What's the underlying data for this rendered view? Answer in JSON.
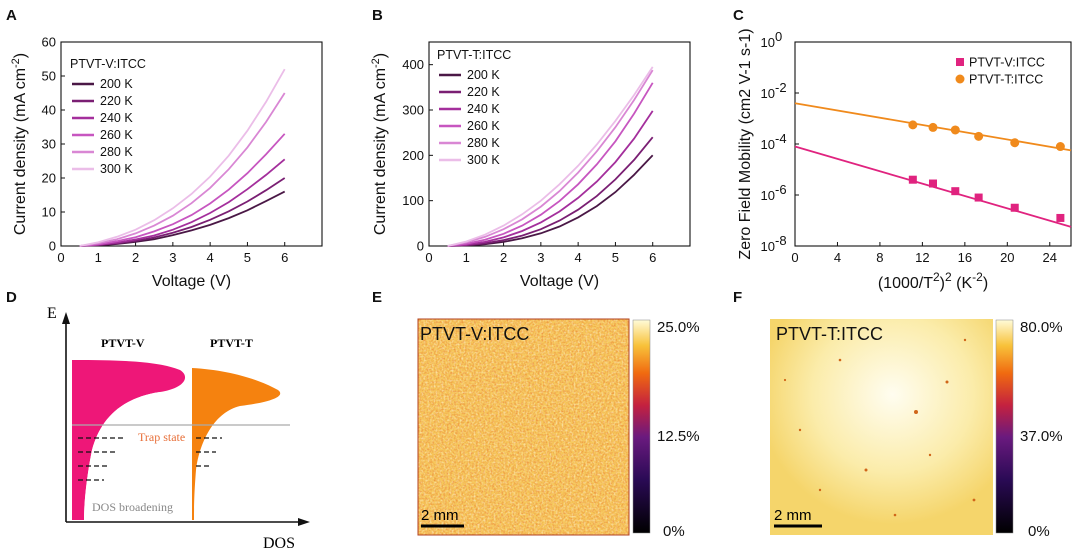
{
  "chart_data": [
    {
      "panel": "A",
      "type": "line",
      "legend_title": "PTVT-V:ITCC",
      "xlabel": "Voltage (V)",
      "ylabel": "Current density (mA cm",
      "ylabel_sup": "-2",
      "ylabel_close": ")",
      "xlim": [
        0,
        7
      ],
      "ylim": [
        0,
        60
      ],
      "xticks": [
        "0",
        "1",
        "2",
        "3",
        "4",
        "5",
        "6"
      ],
      "yticks": [
        "0",
        "10",
        "20",
        "30",
        "40",
        "50",
        "60"
      ],
      "x": [
        0.5,
        1,
        1.5,
        2,
        2.5,
        3,
        3.5,
        4,
        4.5,
        5,
        5.5,
        6
      ],
      "series": [
        {
          "name": "200 K",
          "color": "#4a1846",
          "values": [
            0,
            0.2,
            0.6,
            1.2,
            2,
            3.2,
            4.6,
            6.2,
            8.2,
            10.5,
            13.2,
            16
          ]
        },
        {
          "name": "220 K",
          "color": "#7a1f73",
          "values": [
            0,
            0.3,
            0.8,
            1.5,
            2.5,
            3.9,
            5.6,
            7.7,
            10.2,
            13.1,
            16.4,
            20
          ]
        },
        {
          "name": "240 K",
          "color": "#a42f9c",
          "values": [
            0,
            0.4,
            1,
            1.9,
            3.1,
            4.8,
            7,
            9.7,
            12.9,
            16.7,
            20.9,
            25.5
          ]
        },
        {
          "name": "260 K",
          "color": "#c756c0",
          "values": [
            0,
            0.5,
            1.4,
            2.6,
            4.3,
            6.4,
            9.1,
            12.5,
            16.6,
            21.4,
            27,
            33
          ]
        },
        {
          "name": "280 K",
          "color": "#d987d4",
          "values": [
            0,
            0.8,
            2,
            3.7,
            6,
            8.9,
            12.6,
            17.1,
            22.6,
            29,
            36.5,
            45
          ]
        },
        {
          "name": "300 K",
          "color": "#ebbde8",
          "values": [
            0,
            1.1,
            2.7,
            4.8,
            7.6,
            11.1,
            15.3,
            20.4,
            26.6,
            33.9,
            42.4,
            52
          ]
        }
      ]
    },
    {
      "panel": "B",
      "type": "line",
      "legend_title": "PTVT-T:ITCC",
      "xlabel": "Voltage (V)",
      "ylabel": "Current density (mA cm",
      "ylabel_sup": "-2",
      "ylabel_close": ")",
      "xlim": [
        0,
        7
      ],
      "ylim": [
        0,
        450
      ],
      "xticks": [
        "0",
        "1",
        "2",
        "3",
        "4",
        "5",
        "6"
      ],
      "yticks": [
        "0",
        "100",
        "200",
        "300",
        "400"
      ],
      "x": [
        0.5,
        1,
        1.5,
        2,
        2.5,
        3,
        3.5,
        4,
        4.5,
        5,
        5.5,
        6
      ],
      "series": [
        {
          "name": "200 K",
          "color": "#4a1846",
          "values": [
            0,
            1,
            4,
            9,
            17,
            28,
            43,
            63,
            88,
            119,
            157,
            200
          ]
        },
        {
          "name": "220 K",
          "color": "#7a1f73",
          "values": [
            0,
            2,
            6,
            13,
            23,
            37,
            56,
            80,
            110,
            147,
            190,
            240
          ]
        },
        {
          "name": "240 K",
          "color": "#a42f9c",
          "values": [
            0,
            3,
            9,
            19,
            33,
            52,
            76,
            106,
            142,
            185,
            237,
            298
          ]
        },
        {
          "name": "260 K",
          "color": "#c756c0",
          "values": [
            0,
            5,
            14,
            27,
            45,
            69,
            99,
            136,
            180,
            231,
            292,
            360
          ]
        },
        {
          "name": "280 K",
          "color": "#d987d4",
          "values": [
            0,
            8,
            20,
            37,
            59,
            87,
            121,
            162,
            209,
            262,
            322,
            388
          ]
        },
        {
          "name": "300 K",
          "color": "#ebbde8",
          "values": [
            0,
            10,
            25,
            45,
            70,
            100,
            136,
            177,
            224,
            276,
            333,
            395
          ]
        }
      ]
    },
    {
      "panel": "C",
      "type": "scatter",
      "xlabel_main": "(1000/T",
      "xlabel_sup1": "2",
      "xlabel_mid": ")",
      "xlabel_sup2": "2",
      "xlabel_unit": " (K",
      "xlabel_sup3": "-2",
      "xlabel_end": ")",
      "ylabel": "Zero Field Mobility (cm2 V-1 s-1)",
      "xlim": [
        0,
        26
      ],
      "ylim_log10": [
        -8,
        0
      ],
      "xticks": [
        "0",
        "4",
        "8",
        "12",
        "16",
        "20",
        "24"
      ],
      "yticks": [
        {
          "base": "10",
          "exp": "0"
        },
        {
          "base": "10",
          "exp": "-2"
        },
        {
          "base": "10",
          "exp": "-4"
        },
        {
          "base": "10",
          "exp": "-6"
        },
        {
          "base": "10",
          "exp": "-8"
        }
      ],
      "series": [
        {
          "name": "PTVT-V:ITCC",
          "marker": "square",
          "color": "#e0237f",
          "x": [
            11.1,
            13.0,
            15.1,
            17.3,
            20.7,
            25.0
          ],
          "log10_y": [
            -5.4,
            -5.55,
            -5.85,
            -6.1,
            -6.5,
            -6.9
          ],
          "fit_log10": [
            -4.1,
            -7.25
          ]
        },
        {
          "name": "PTVT-T:ITCC",
          "marker": "circle",
          "color": "#f08a1c",
          "x": [
            11.1,
            13.0,
            15.1,
            17.3,
            20.7,
            25.0
          ],
          "log10_y": [
            -3.25,
            -3.35,
            -3.45,
            -3.7,
            -3.95,
            -4.1
          ],
          "fit_log10": [
            -2.4,
            -4.25
          ]
        }
      ]
    }
  ],
  "panel_labels": {
    "A": "A",
    "B": "B",
    "C": "C",
    "D": "D",
    "E": "E",
    "F": "F"
  },
  "panel_d": {
    "axis_e": "E",
    "axis_dos": "DOS",
    "label_v": "PTVT-V",
    "label_t": "PTVT-T",
    "trap": "Trap state",
    "broadening": "DOS broadening",
    "color_v": "#ee1778",
    "color_t": "#f5820f"
  },
  "panel_e": {
    "title": "PTVT-V:ITCC",
    "scale": "2 mm",
    "colorbar": [
      "25.0%",
      "12.5%",
      "0%"
    ]
  },
  "panel_f": {
    "title": "PTVT-T:ITCC",
    "scale": "2 mm",
    "colorbar": [
      "80.0%",
      "37.0%",
      "0%"
    ]
  }
}
